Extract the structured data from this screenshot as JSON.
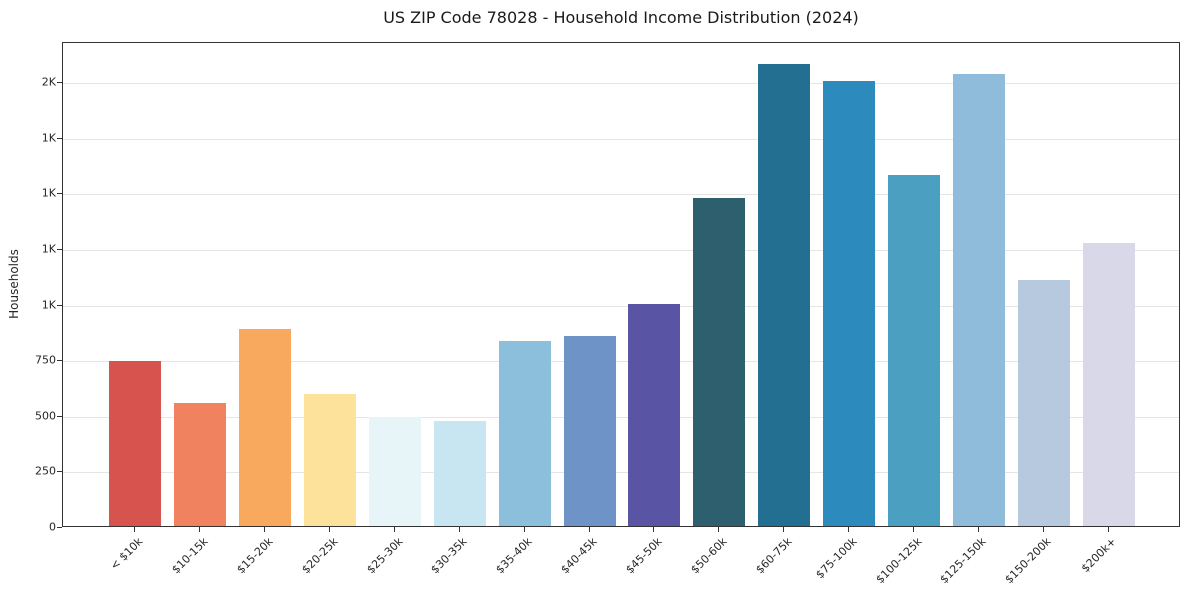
{
  "chart_data": {
    "type": "bar",
    "title": "US ZIP Code 78028 - Household Income Distribution (2024)",
    "xlabel": "",
    "ylabel": "Households",
    "ylim": [
      0,
      2180
    ],
    "grid": "horizontal",
    "legend": "none",
    "categories": [
      "< $10k",
      "$10-15k",
      "$15-20k",
      "$20-25k",
      "$25-30k",
      "$30-35k",
      "$35-40k",
      "$40-45k",
      "$45-50k",
      "$50-60k",
      "$60-75k",
      "$75-100k",
      "$100-125k",
      "$125-150k",
      "$150-200k",
      "$200k+"
    ],
    "values": [
      740,
      555,
      885,
      595,
      490,
      470,
      830,
      855,
      1000,
      1475,
      2075,
      2000,
      1580,
      2030,
      1105,
      1270
    ],
    "bar_colors": [
      "#d6534e",
      "#f0825f",
      "#f8a95e",
      "#fce29a",
      "#e7f4f8",
      "#c7e6f1",
      "#8cbfdc",
      "#6e93c6",
      "#5a54a4",
      "#2e5f6e",
      "#236f92",
      "#2d8abc",
      "#4ba0c2",
      "#8fbcdb",
      "#b7c9de",
      "#d8d8e8"
    ],
    "yticks": [
      {
        "value": 0,
        "label": "0"
      },
      {
        "value": 250,
        "label": "250"
      },
      {
        "value": 500,
        "label": "500"
      },
      {
        "value": 750,
        "label": "750"
      },
      {
        "value": 1000,
        "label": "1K"
      },
      {
        "value": 1250,
        "label": "1K"
      },
      {
        "value": 1500,
        "label": "1K"
      },
      {
        "value": 1750,
        "label": "1K"
      },
      {
        "value": 2000,
        "label": "2K"
      }
    ]
  }
}
